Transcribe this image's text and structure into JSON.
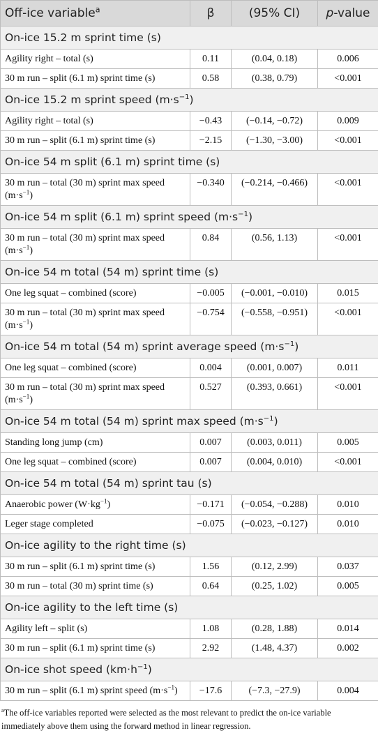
{
  "header": [
    [
      "Off-ice variable",
      {
        "sup": "a"
      }
    ],
    "β",
    "(95% CI)",
    [
      {
        "i": "p"
      },
      "-value"
    ]
  ],
  "sections": [
    {
      "title": "On-ice 15.2 m sprint time (s)",
      "rows": [
        [
          "Agility right – total (s)",
          "0.11",
          "(0.04, 0.18)",
          "0.006"
        ],
        [
          "30 m run – split (6.1 m) sprint time (s)",
          "0.58",
          "(0.38, 0.79)",
          "<0.001"
        ]
      ]
    },
    {
      "title": [
        "On-ice 15.2 m sprint speed (m·s",
        {
          "sup": "−1"
        },
        ")"
      ],
      "rows": [
        [
          "Agility right – total (s)",
          "−0.43",
          "(−0.14, −0.72)",
          "0.009"
        ],
        [
          "30 m run – split (6.1 m) sprint time (s)",
          "−2.15",
          "(−1.30, −3.00)",
          "<0.001"
        ]
      ]
    },
    {
      "title": "On-ice 54 m split (6.1 m) sprint time (s)",
      "rows": [
        [
          [
            "30 m run – total (30 m) sprint max speed (m·s",
            {
              "sup": "−1"
            },
            ")"
          ],
          "−0.340",
          "(−0.214, −0.466)",
          "<0.001"
        ]
      ]
    },
    {
      "title": [
        "On-ice 54 m split (6.1 m) sprint speed (m·s",
        {
          "sup": "−1"
        },
        ")"
      ],
      "rows": [
        [
          [
            "30 m run – total (30 m) sprint max speed (m·s",
            {
              "sup": "−1"
            },
            ")"
          ],
          "0.84",
          "(0.56, 1.13)",
          "<0.001"
        ]
      ]
    },
    {
      "title": "On-ice 54 m total (54 m) sprint time (s)",
      "rows": [
        [
          "One leg squat – combined (score)",
          "−0.005",
          "(−0.001, −0.010)",
          "0.015"
        ],
        [
          [
            "30 m run – total (30 m) sprint max speed (m·s",
            {
              "sup": "−1"
            },
            ")"
          ],
          "−0.754",
          "(−0.558, −0.951)",
          "<0.001"
        ]
      ]
    },
    {
      "title": [
        "On-ice 54 m total (54 m) sprint average speed (m·s",
        {
          "sup": "−1"
        },
        ")"
      ],
      "rows": [
        [
          "One leg squat – combined (score)",
          "0.004",
          "(0.001, 0.007)",
          "0.011"
        ],
        [
          [
            "30 m run – total (30 m) sprint max speed (m·s",
            {
              "sup": "−1"
            },
            ")"
          ],
          "0.527",
          "(0.393, 0.661)",
          "<0.001"
        ]
      ]
    },
    {
      "title": [
        "On-ice 54 m total (54 m) sprint max speed (m·s",
        {
          "sup": "−1"
        },
        ")"
      ],
      "rows": [
        [
          "Standing long jump (cm)",
          "0.007",
          "(0.003, 0.011)",
          "0.005"
        ],
        [
          "One leg squat – combined (score)",
          "0.007",
          "(0.004, 0.010)",
          "<0.001"
        ]
      ]
    },
    {
      "title": "On-ice 54 m total (54 m) sprint tau (s)",
      "rows": [
        [
          [
            "Anaerobic power (W·kg",
            {
              "sup": "−1"
            },
            ")"
          ],
          "−0.171",
          "(−0.054, −0.288)",
          "0.010"
        ],
        [
          "Leger stage completed",
          "−0.075",
          "(−0.023, −0.127)",
          "0.010"
        ]
      ]
    },
    {
      "title": "On-ice agility to the right time (s)",
      "rows": [
        [
          "30 m run – split (6.1 m) sprint time (s)",
          "1.56",
          "(0.12, 2.99)",
          "0.037"
        ],
        [
          "30 m run – total (30 m) sprint time (s)",
          "0.64",
          "(0.25, 1.02)",
          "0.005"
        ]
      ]
    },
    {
      "title": "On-ice agility to the left time (s)",
      "rows": [
        [
          "Agility left – split (s)",
          "1.08",
          "(0.28, 1.88)",
          "0.014"
        ],
        [
          "30 m run – split (6.1 m) sprint time (s)",
          "2.92",
          "(1.48, 4.37)",
          "0.002"
        ]
      ]
    },
    {
      "title": [
        "On-ice shot speed (km·h",
        {
          "sup": "−1"
        },
        ")"
      ],
      "rows": [
        [
          [
            "30 m run – split (6.1 m) sprint speed (m·s",
            {
              "sup": "−1"
            },
            ")"
          ],
          "−17.6",
          "(−7.3, −27.9)",
          "0.004"
        ]
      ]
    }
  ],
  "footnote": [
    {
      "sup": "a"
    },
    "The off-ice variables reported were selected as the most relevant to predict the on-ice variable immediately above them using the forward method in linear regression."
  ]
}
